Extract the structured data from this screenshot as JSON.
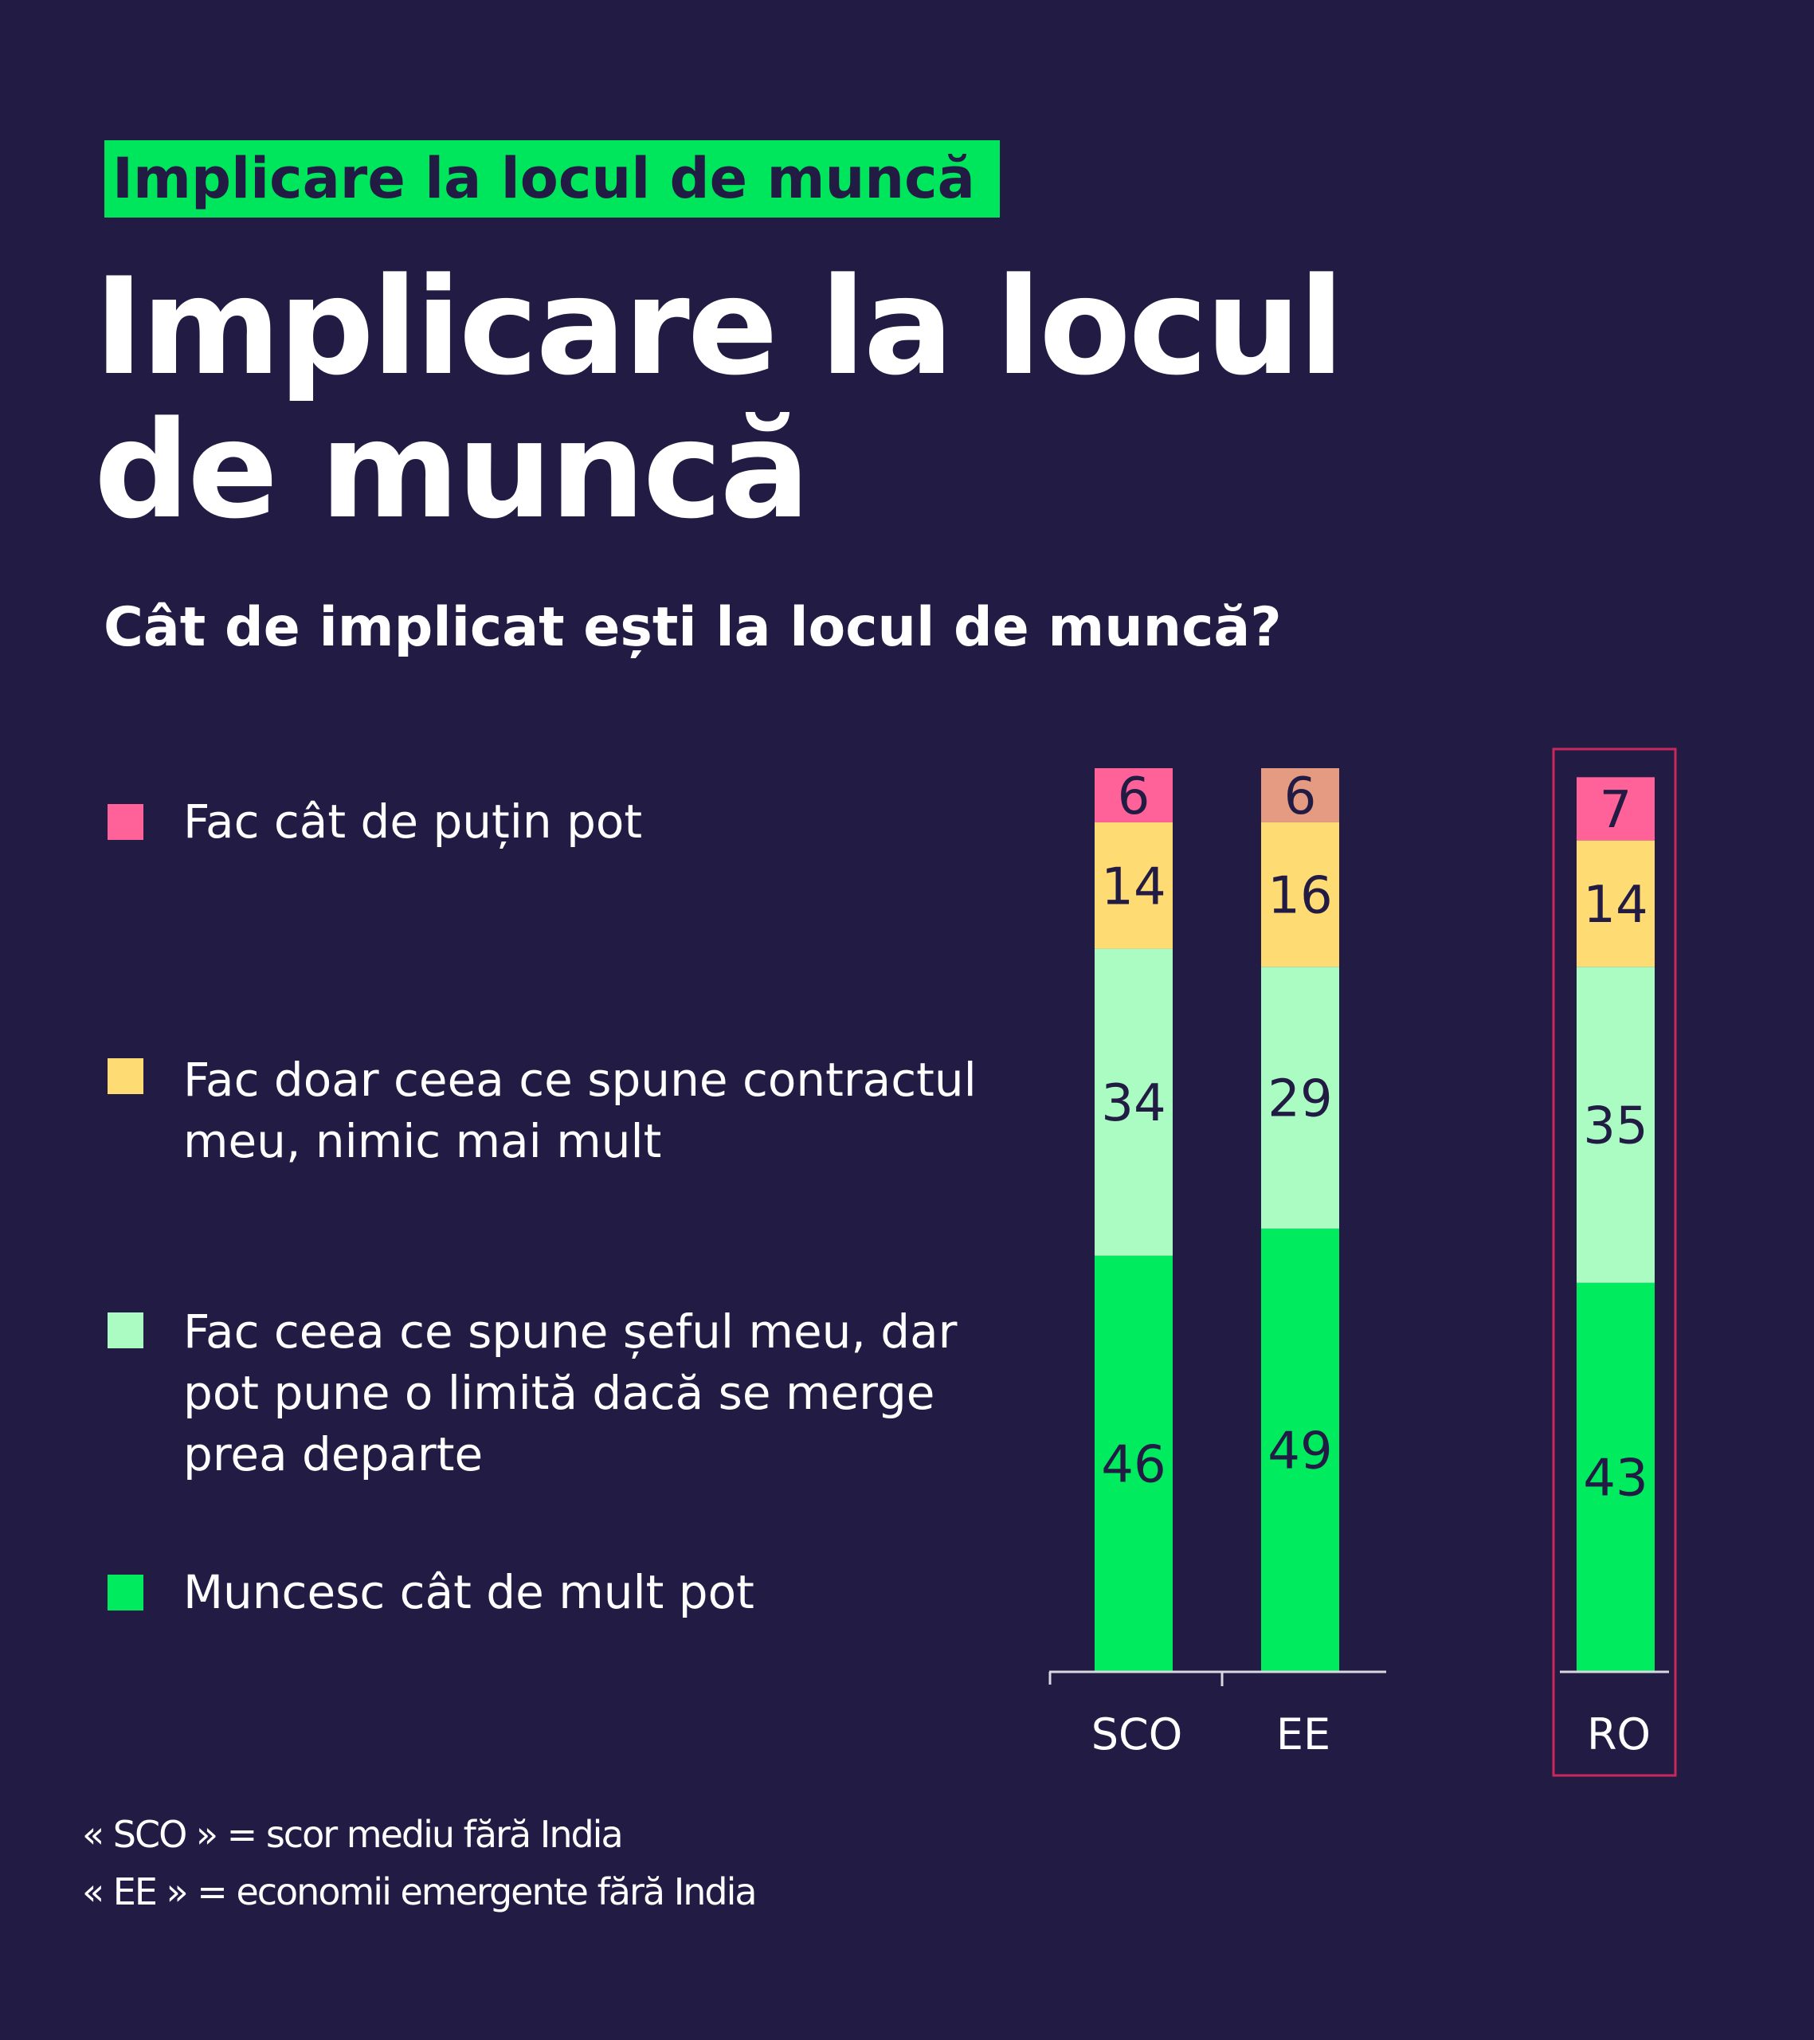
{
  "tag": "Implicare la locul de muncă",
  "title_line1": "Implicare la locul",
  "title_line2": "de muncă",
  "subtitle": "Cât de implicat ești la locul de muncă?",
  "legend": [
    {
      "label": "Fac cât de puțin pot",
      "color": "#FF6298"
    },
    {
      "label": "Fac doar ceea ce spune contractul meu, nimic mai mult",
      "color": "#FFDB74"
    },
    {
      "label": "Fac ceea ce spune șeful meu, dar pot pune o limită dacă se merge prea departe",
      "color": "#AAFCC3"
    },
    {
      "label": "Muncesc cât de mult pot",
      "color": "#00EB5E"
    }
  ],
  "footnotes": [
    "« SCO » = scor mediu fără India",
    "« EE » = economii emergente fără India"
  ],
  "chart_data": {
    "type": "bar",
    "stacked": true,
    "categories": [
      "SCO",
      "EE",
      "RO"
    ],
    "highlighted_category": "RO",
    "highlight_color": "#C8285A",
    "series": [
      {
        "name": "Muncesc cât de mult pot",
        "values": [
          46,
          49,
          43
        ],
        "color": "#00EB5E"
      },
      {
        "name": "Fac ceea ce spune șeful meu, dar pot pune o limită dacă se merge prea departe",
        "values": [
          34,
          29,
          35
        ],
        "color": "#AAFCC3"
      },
      {
        "name": "Fac doar ceea ce spune contractul meu, nimic mai mult",
        "values": [
          14,
          16,
          14
        ],
        "color": "#FFDB74"
      },
      {
        "name": "Fac cât de puțin pot",
        "values": [
          6,
          6,
          7
        ],
        "colors": [
          "#FF6298",
          "#E59A82",
          "#FF6298"
        ]
      }
    ],
    "ylim": [
      0,
      100
    ],
    "legend_placement": "left",
    "grid": false
  }
}
